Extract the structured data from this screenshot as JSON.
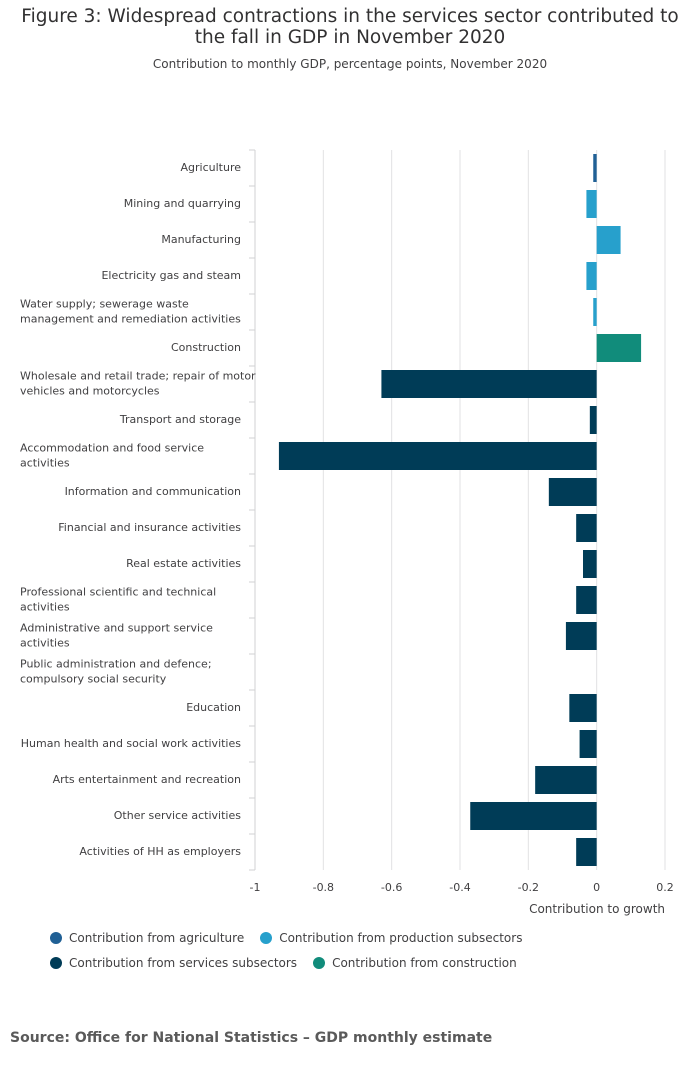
{
  "chart_data": {
    "type": "bar",
    "orientation": "horizontal",
    "title": "Figure 3: Widespread contractions in the services sector contributed to the fall in GDP in November 2020",
    "subtitle": "Contribution to monthly GDP, percentage points, November 2020",
    "xlabel": "Contribution to growth",
    "xlim": [
      -1,
      0.2
    ],
    "xticks": [
      -1,
      -0.8,
      -0.6,
      -0.4,
      -0.2,
      0,
      0.2
    ],
    "xtick_labels": [
      "-1",
      "-0.8",
      "-0.6",
      "-0.4",
      "-0.2",
      "0",
      "0.2"
    ],
    "grid": true,
    "categories": [
      [
        "Agriculture"
      ],
      [
        "Mining and quarrying"
      ],
      [
        "Manufacturing"
      ],
      [
        "Electricity gas and steam"
      ],
      [
        "Water supply; sewerage waste",
        "management and remediation activities"
      ],
      [
        "Construction"
      ],
      [
        "Wholesale and retail trade; repair of motor",
        "vehicles and motorcycles"
      ],
      [
        "Transport and storage"
      ],
      [
        "Accommodation and food service",
        "activities"
      ],
      [
        "Information and communication"
      ],
      [
        "Financial and insurance activities"
      ],
      [
        "Real estate activities"
      ],
      [
        "Professional scientific and technical",
        "activities"
      ],
      [
        "Administrative and support service",
        "activities"
      ],
      [
        "Public administration and defence;",
        "compulsory social security"
      ],
      [
        "Education"
      ],
      [
        "Human health and social work activities"
      ],
      [
        "Arts entertainment and recreation"
      ],
      [
        "Other service activities"
      ],
      [
        "Activities of HH as employers"
      ]
    ],
    "values": [
      -0.01,
      -0.03,
      0.07,
      -0.03,
      -0.01,
      0.13,
      -0.63,
      -0.02,
      -0.93,
      -0.14,
      -0.06,
      -0.04,
      -0.06,
      -0.09,
      0,
      -0.08,
      -0.05,
      -0.18,
      -0.37,
      -0.06
    ],
    "groups": [
      "agriculture",
      "production",
      "production",
      "production",
      "production",
      "construction",
      "services",
      "services",
      "services",
      "services",
      "services",
      "services",
      "services",
      "services",
      "services",
      "services",
      "services",
      "services",
      "services",
      "services"
    ],
    "legend": [
      {
        "key": "agriculture",
        "label": "Contribution from agriculture",
        "color": "#206095"
      },
      {
        "key": "production",
        "label": "Contribution from production subsectors",
        "color": "#27a0cc"
      },
      {
        "key": "services",
        "label": "Contribution from services subsectors",
        "color": "#003c57"
      },
      {
        "key": "construction",
        "label": "Contribution from construction",
        "color": "#118c7b"
      }
    ],
    "legend_position": "bottom"
  },
  "source": "Source: Office for National Statistics – GDP monthly estimate"
}
